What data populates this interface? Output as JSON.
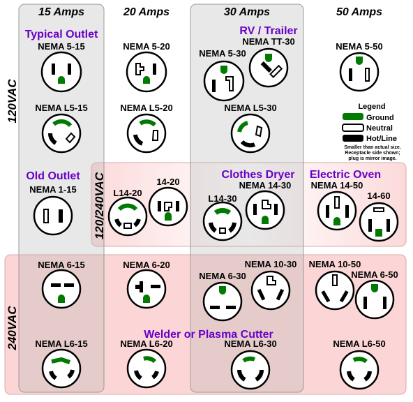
{
  "columns": [
    "15 Amps",
    "20 Amps",
    "30 Amps",
    "50 Amps"
  ],
  "rows": [
    "120VAC",
    "120/240VAC",
    "240VAC"
  ],
  "highlights": {
    "typical": "Typical Outlet",
    "rv": "RV / Trailer",
    "old": "Old Outlet",
    "dryer": "Clothes Dryer",
    "oven": "Electric Oven",
    "welder": "Welder or Plasma Cutter"
  },
  "labels": {
    "n515": "NEMA 5-15",
    "n520": "NEMA 5-20",
    "n530": "NEMA 5-30",
    "ntt30": "NEMA TT-30",
    "n550": "NEMA 5-50",
    "nl515": "NEMA L5-15",
    "nl520": "NEMA L5-20",
    "nl530": "NEMA L5-30",
    "n115": "NEMA 1-15",
    "l1420": "L14-20",
    "n1420": "14-20",
    "l1430": "L14-30",
    "n1430": "NEMA 14-30",
    "n1450": "NEMA 14-50",
    "n1460": "14-60",
    "n615": "NEMA 6-15",
    "n620": "NEMA 6-20",
    "n630": "NEMA 6-30",
    "n1030": "NEMA 10-30",
    "n1050": "NEMA 10-50",
    "n650": "NEMA 6-50",
    "nl615": "NEMA L6-15",
    "nl620": "NEMA L6-20",
    "nl630": "NEMA L6-30",
    "nl650": "NEMA L6-50"
  },
  "legend": {
    "title": "Legend",
    "ground": "Ground",
    "neutral": "Neutral",
    "hot": "Hot/Line",
    "note1": "Smaller than actual size.",
    "note2": "Receptacle side shown;",
    "note3": "plug is mirror image."
  },
  "colors": {
    "ground": "#007a00",
    "purple": "#6a00c8",
    "band": "#fcd6d6",
    "gray": "#ebebeb"
  }
}
